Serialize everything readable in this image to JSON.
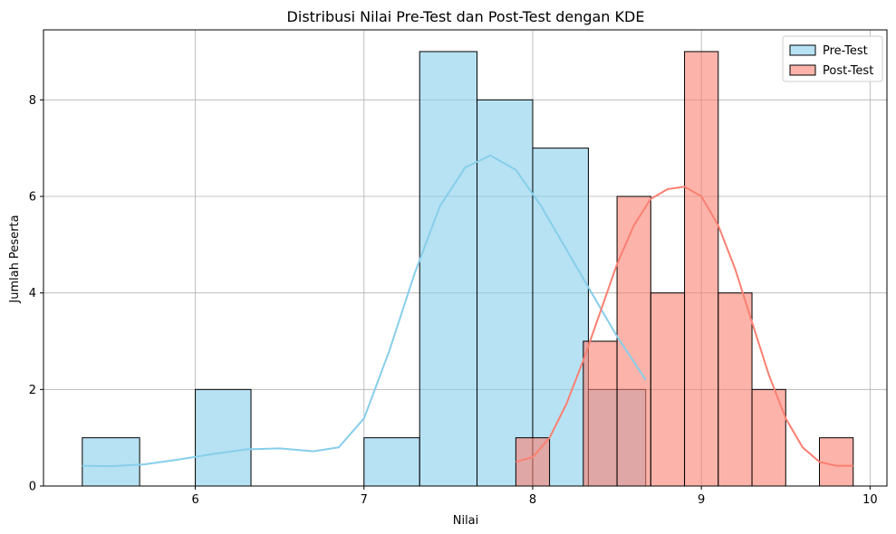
{
  "chart_data": {
    "type": "histogram",
    "title": "Distribusi Nilai Pre-Test dan Post-Test dengan KDE",
    "xlabel": "Nilai",
    "ylabel": "Jumlah Peserta",
    "xlim": [
      5.1,
      10.1
    ],
    "ylim": [
      0,
      9.45
    ],
    "xticks": [
      6,
      7,
      8,
      9,
      10
    ],
    "yticks": [
      0,
      2,
      4,
      6,
      8
    ],
    "grid": true,
    "legend_position": "top-right",
    "series": [
      {
        "name": "Pre-Test",
        "color": "#87CEEB",
        "kde_color": "#87CEEB",
        "bins": [
          {
            "x0": 5.33,
            "x1": 5.67,
            "count": 1
          },
          {
            "x0": 6.0,
            "x1": 6.33,
            "count": 2
          },
          {
            "x0": 7.0,
            "x1": 7.33,
            "count": 1
          },
          {
            "x0": 7.33,
            "x1": 7.67,
            "count": 9
          },
          {
            "x0": 7.67,
            "x1": 8.0,
            "count": 8
          },
          {
            "x0": 8.0,
            "x1": 8.33,
            "count": 7
          },
          {
            "x0": 8.33,
            "x1": 8.67,
            "count": 2
          }
        ],
        "kde": [
          [
            5.33,
            0.42
          ],
          [
            5.5,
            0.41
          ],
          [
            5.7,
            0.45
          ],
          [
            5.9,
            0.55
          ],
          [
            6.1,
            0.66
          ],
          [
            6.3,
            0.76
          ],
          [
            6.5,
            0.78
          ],
          [
            6.7,
            0.72
          ],
          [
            6.85,
            0.8
          ],
          [
            7.0,
            1.4
          ],
          [
            7.15,
            2.8
          ],
          [
            7.3,
            4.4
          ],
          [
            7.45,
            5.8
          ],
          [
            7.6,
            6.6
          ],
          [
            7.75,
            6.85
          ],
          [
            7.9,
            6.55
          ],
          [
            8.05,
            5.8
          ],
          [
            8.2,
            4.9
          ],
          [
            8.35,
            4.0
          ],
          [
            8.5,
            3.1
          ],
          [
            8.67,
            2.2
          ]
        ]
      },
      {
        "name": "Post-Test",
        "color": "#FA8072",
        "kde_color": "#FA8072",
        "bins": [
          {
            "x0": 7.9,
            "x1": 8.1,
            "count": 1
          },
          {
            "x0": 8.3,
            "x1": 8.5,
            "count": 3
          },
          {
            "x0": 8.5,
            "x1": 8.7,
            "count": 6
          },
          {
            "x0": 8.7,
            "x1": 8.9,
            "count": 4
          },
          {
            "x0": 8.9,
            "x1": 9.1,
            "count": 9
          },
          {
            "x0": 9.1,
            "x1": 9.3,
            "count": 4
          },
          {
            "x0": 9.3,
            "x1": 9.5,
            "count": 2
          },
          {
            "x0": 9.7,
            "x1": 9.9,
            "count": 1
          }
        ],
        "kde": [
          [
            7.9,
            0.5
          ],
          [
            8.0,
            0.6
          ],
          [
            8.1,
            1.0
          ],
          [
            8.2,
            1.7
          ],
          [
            8.3,
            2.6
          ],
          [
            8.4,
            3.6
          ],
          [
            8.5,
            4.6
          ],
          [
            8.6,
            5.4
          ],
          [
            8.7,
            5.95
          ],
          [
            8.8,
            6.15
          ],
          [
            8.9,
            6.2
          ],
          [
            9.0,
            6.0
          ],
          [
            9.1,
            5.4
          ],
          [
            9.2,
            4.5
          ],
          [
            9.3,
            3.4
          ],
          [
            9.4,
            2.3
          ],
          [
            9.5,
            1.4
          ],
          [
            9.6,
            0.8
          ],
          [
            9.7,
            0.5
          ],
          [
            9.8,
            0.42
          ],
          [
            9.9,
            0.42
          ]
        ]
      }
    ]
  }
}
